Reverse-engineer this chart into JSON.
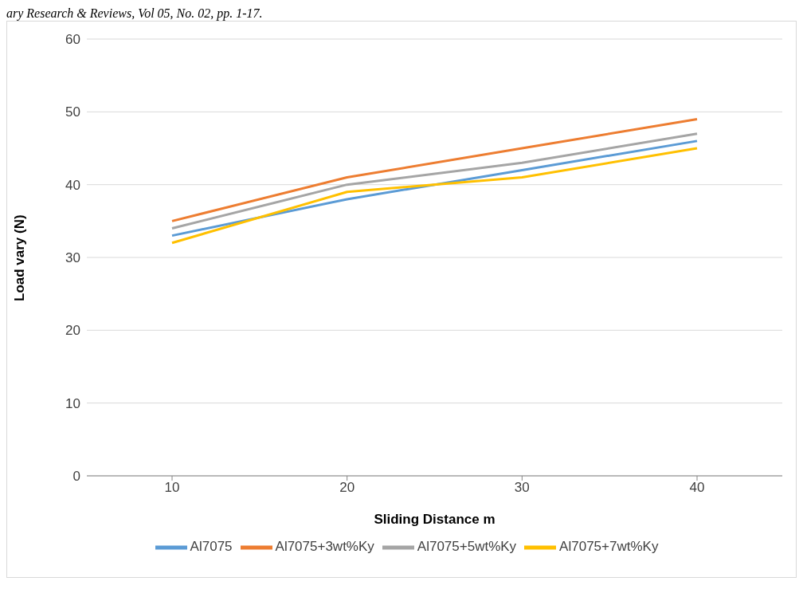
{
  "chart_data": {
    "type": "line",
    "annotations": [
      "ary Research & Reviews, Vol 05, No. 02, pp. 1-17."
    ],
    "xlabel": "Sliding Distance m",
    "ylabel": "Load vary (N)",
    "categories": [
      "10",
      "20",
      "30",
      "40"
    ],
    "series": [
      {
        "name": "Al7075",
        "color": "#5b9bd5",
        "values": [
          33,
          38,
          42,
          46
        ]
      },
      {
        "name": "Al7075+3wt%Ky",
        "color": "#ed7d31",
        "values": [
          35,
          41,
          45,
          49
        ]
      },
      {
        "name": "Al7075+5wt%Ky",
        "color": "#a5a5a5",
        "values": [
          34,
          40,
          43,
          47
        ]
      },
      {
        "name": "Al7075+7wt%Ky",
        "color": "#ffc000",
        "values": [
          32,
          39,
          41,
          45
        ]
      }
    ],
    "ylim": [
      0,
      60
    ],
    "yticks": [
      0,
      10,
      20,
      30,
      40,
      50,
      60
    ],
    "grid": "y",
    "legend": "bottom",
    "marker": "none",
    "line_style": "solid"
  }
}
